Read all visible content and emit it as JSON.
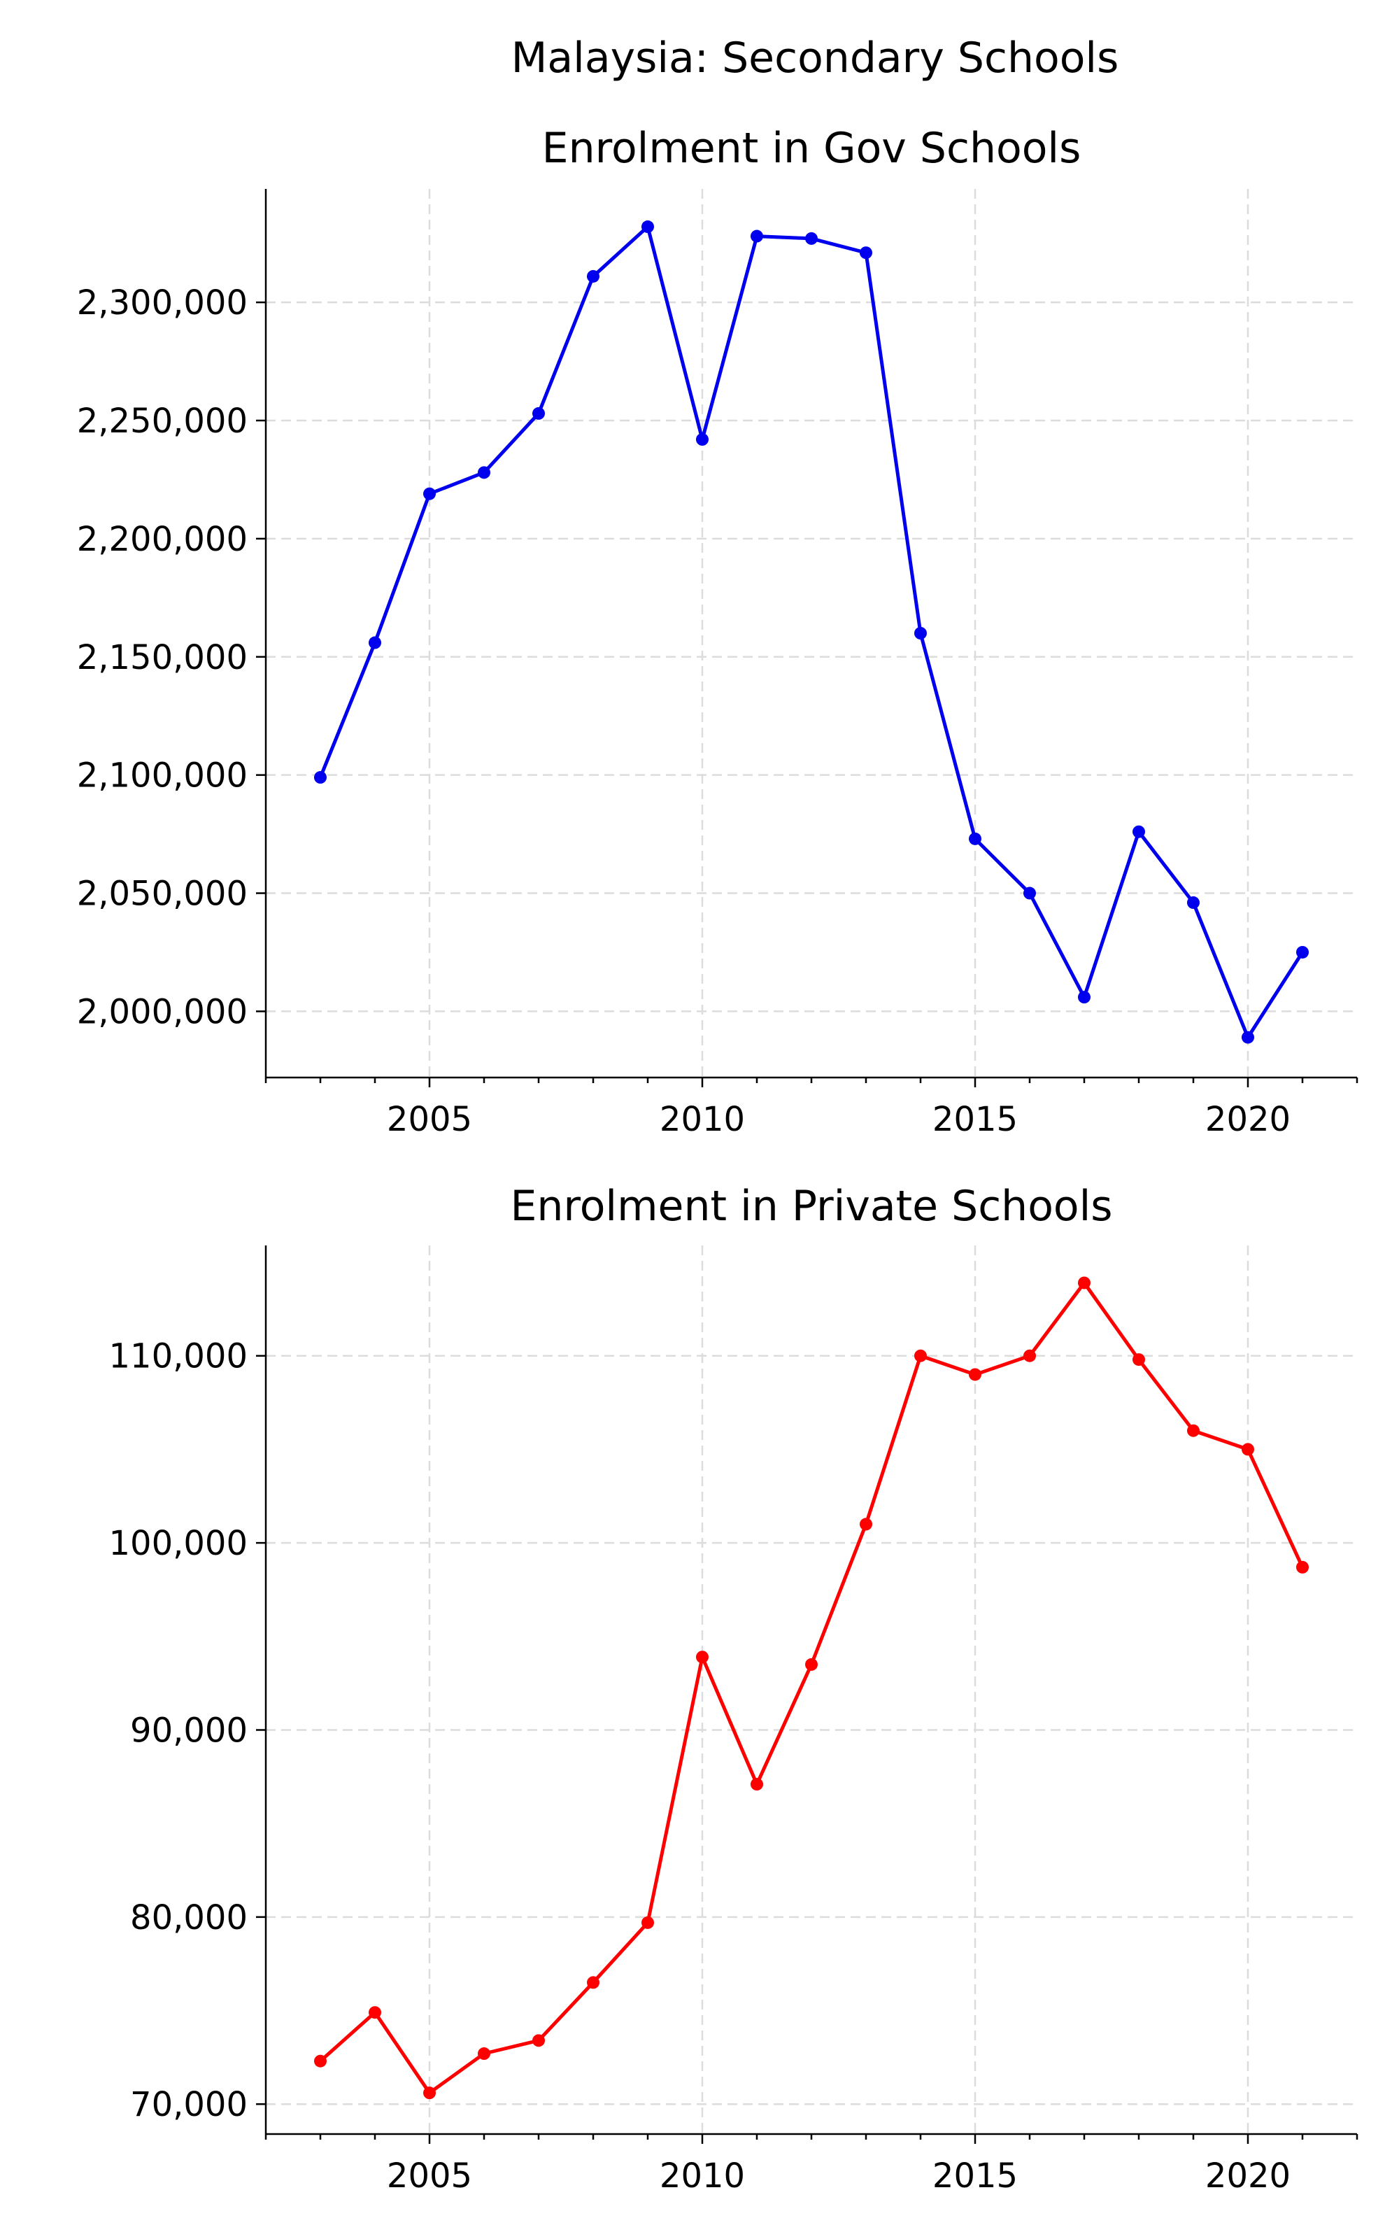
{
  "figure": {
    "suptitle": "Malaysia: Secondary Schools"
  },
  "chart_data": [
    {
      "type": "line",
      "title": "Enrolment in Gov Schools",
      "xlabel": "",
      "ylabel": "",
      "color": "#0000ee",
      "grid": true,
      "xlim": [
        2002,
        2022
      ],
      "ylim": [
        1972000,
        2348000
      ],
      "xticks": [
        2005,
        2010,
        2015,
        2020
      ],
      "yticks": [
        2000000,
        2050000,
        2100000,
        2150000,
        2200000,
        2250000,
        2300000
      ],
      "ytick_labels": [
        "2,000,000",
        "2,050,000",
        "2,100,000",
        "2,150,000",
        "2,200,000",
        "2,250,000",
        "2,300,000"
      ],
      "x": [
        2003,
        2004,
        2005,
        2006,
        2007,
        2008,
        2009,
        2010,
        2011,
        2012,
        2013,
        2014,
        2015,
        2016,
        2017,
        2018,
        2019,
        2020,
        2021
      ],
      "values": [
        2099000,
        2156000,
        2219000,
        2228000,
        2253000,
        2311000,
        2332000,
        2242000,
        2328000,
        2327000,
        2321000,
        2160000,
        2073000,
        2050000,
        2006000,
        2076000,
        2046000,
        1989000,
        2025000
      ]
    },
    {
      "type": "line",
      "title": "Enrolment in Private Schools",
      "xlabel": "",
      "ylabel": "",
      "color": "#ff0000",
      "grid": true,
      "xlim": [
        2002,
        2022
      ],
      "ylim": [
        68400,
        115900
      ],
      "xticks": [
        2005,
        2010,
        2015,
        2020
      ],
      "yticks": [
        70000,
        80000,
        90000,
        100000,
        110000
      ],
      "ytick_labels": [
        "70,000",
        "80,000",
        "90,000",
        "100,000",
        "110,000"
      ],
      "x": [
        2003,
        2004,
        2005,
        2006,
        2007,
        2008,
        2009,
        2010,
        2011,
        2012,
        2013,
        2014,
        2015,
        2016,
        2017,
        2018,
        2019,
        2020,
        2021
      ],
      "values": [
        72300,
        74900,
        70600,
        72700,
        73400,
        76500,
        79700,
        93900,
        87100,
        93500,
        101000,
        110000,
        109000,
        110000,
        113900,
        109800,
        106000,
        105000,
        98700
      ]
    }
  ]
}
